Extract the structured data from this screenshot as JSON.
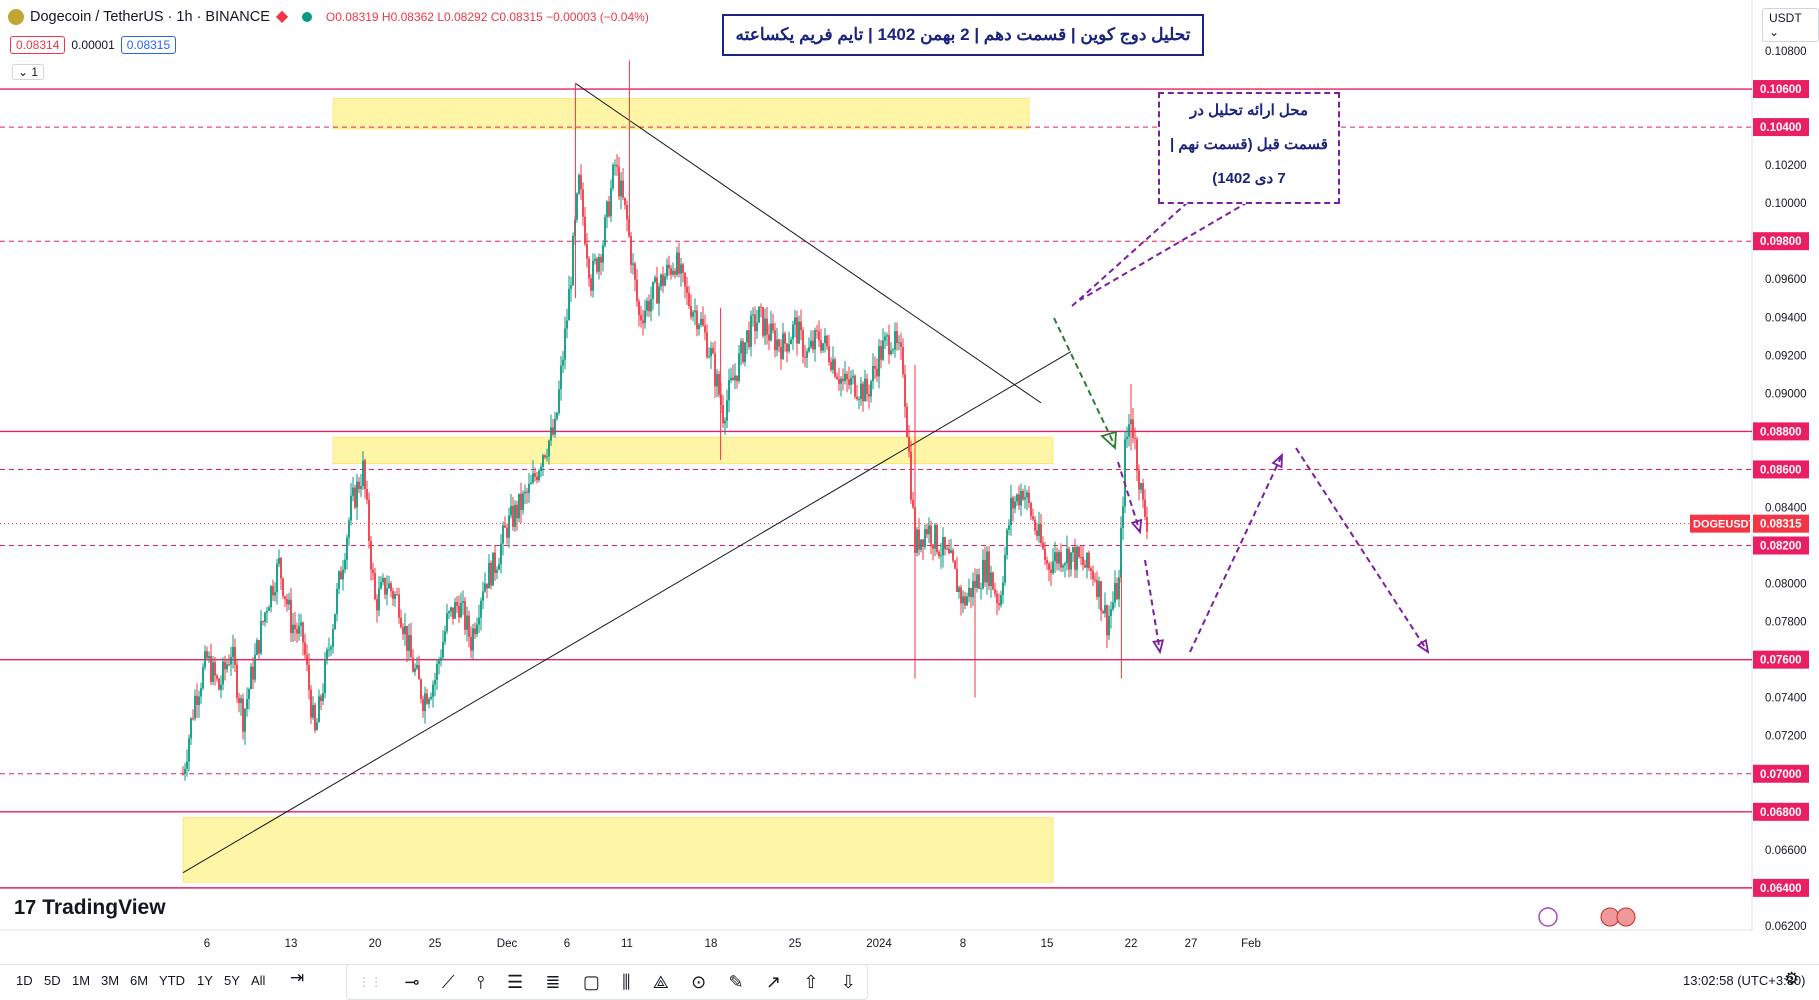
{
  "header": {
    "symbol": "Dogecoin / TetherUS · 1h · BINANCE",
    "ohlc": "O0.08319 H0.08362 L0.08292 C0.08315 −0.00003 (−0.04%)",
    "bid": "0.08314",
    "spread": "0.00001",
    "ask": "0.08315",
    "indicator_index": "1",
    "currency": "USDT"
  },
  "annotations": {
    "title": "تحلیل دوج کوین | قسمت دهم | 2 بهمن 1402 | تایم فریم یکساعته",
    "note_line1": "محل ارائه تحلیل در",
    "note_line2": "قسمت قبل (قسمت نهم |",
    "note_line3": "7 دی 1402)"
  },
  "brand": {
    "name": "TradingView"
  },
  "toolbar": {
    "timeframes": [
      "1D",
      "5D",
      "1M",
      "3M",
      "6M",
      "YTD",
      "1Y",
      "5Y",
      "All"
    ],
    "clock": "13:02:58 (UTC+3:30)"
  },
  "icons": {
    "calendar": "calendar-range-icon",
    "settings": "gear-icon",
    "logo": "tradingview-logo-icon"
  },
  "colors": {
    "up": "#089981",
    "down": "#f23645",
    "level": "#e91e63",
    "zone": "#fff59d",
    "annotation_purple": "#7b1fa2",
    "annotation_green": "#2e7d32",
    "title_blue": "#1a237e"
  },
  "chart_data": {
    "type": "candlestick",
    "symbol": "DOGEUSDT",
    "last_price": 0.08315,
    "ylim": [
      0.062,
      0.108
    ],
    "y_ticks": [
      0.108,
      0.106,
      0.104,
      0.102,
      0.1,
      0.098,
      0.096,
      0.094,
      0.092,
      0.09,
      0.088,
      0.086,
      0.084,
      0.082,
      0.08,
      0.078,
      0.076,
      0.074,
      0.072,
      0.07,
      0.068,
      0.066,
      0.064,
      0.062
    ],
    "y_tick_labels": [
      "0.10800",
      "0.10600",
      "0.10400",
      "0.10200",
      "0.10000",
      "0.09800",
      "0.09600",
      "0.09400",
      "0.09200",
      "0.09000",
      "0.08800",
      "0.08600",
      "0.08400",
      "0.08200",
      "0.08000",
      "0.07800",
      "0.07600",
      "0.07400",
      "0.07200",
      "0.07000",
      "0.06800",
      "0.06600",
      "0.06400",
      "0.06200"
    ],
    "x_tick_labels": [
      "6",
      "13",
      "20",
      "25",
      "Dec",
      "6",
      "11",
      "18",
      "25",
      "2024",
      "8",
      "15",
      "22",
      "27",
      "Feb"
    ],
    "x_tick_days": [
      -25,
      -18,
      -11,
      -6,
      0,
      5,
      10,
      17,
      24,
      31,
      38,
      45,
      52,
      57,
      62
    ],
    "highlighted_levels": [
      {
        "price": 0.106,
        "label": "0.10600",
        "style": "solid"
      },
      {
        "price": 0.104,
        "label": "0.10400",
        "style": "dashed"
      },
      {
        "price": 0.098,
        "label": "0.09800",
        "style": "dashed"
      },
      {
        "price": 0.088,
        "label": "0.08800",
        "style": "solid"
      },
      {
        "price": 0.086,
        "label": "0.08600",
        "style": "dashed"
      },
      {
        "price": 0.082,
        "label": "0.08200",
        "style": "dashed"
      },
      {
        "price": 0.076,
        "label": "0.07600",
        "style": "solid"
      },
      {
        "price": 0.07,
        "label": "0.07000",
        "style": "dashed"
      },
      {
        "price": 0.068,
        "label": "0.06800",
        "style": "solid"
      },
      {
        "price": 0.064,
        "label": "0.06400",
        "style": "solid"
      }
    ],
    "zones": [
      {
        "x_from": -14.5,
        "x_to": 43.5,
        "y_from": 0.1039,
        "y_to": 0.1055
      },
      {
        "x_from": -14.5,
        "x_to": 45.5,
        "y_from": 0.0863,
        "y_to": 0.0877
      },
      {
        "x_from": -27,
        "x_to": 45.5,
        "y_from": 0.0643,
        "y_to": 0.0677
      }
    ],
    "trendlines": [
      {
        "from": [
          -27.0,
          0.0648
        ],
        "to": [
          47.0,
          0.0922
        ]
      },
      {
        "from": [
          5.7,
          0.1063
        ],
        "to": [
          44.5,
          0.0895
        ]
      }
    ],
    "price_label": "DOGEUSDT",
    "price_label_value": "0.08315",
    "candles_close_path": [
      [
        -27.0,
        0.07
      ],
      [
        -26,
        0.074
      ],
      [
        -25,
        0.076
      ],
      [
        -24,
        0.0745
      ],
      [
        -23,
        0.0765
      ],
      [
        -22,
        0.073
      ],
      [
        -21,
        0.076
      ],
      [
        -20,
        0.079
      ],
      [
        -19,
        0.081
      ],
      [
        -18,
        0.078
      ],
      [
        -17,
        0.077
      ],
      [
        -16,
        0.072
      ],
      [
        -15,
        0.076
      ],
      [
        -14,
        0.08
      ],
      [
        -13,
        0.084
      ],
      [
        -12,
        0.086
      ],
      [
        -11,
        0.079
      ],
      [
        -10,
        0.08
      ],
      [
        -9,
        0.079
      ],
      [
        -8,
        0.076
      ],
      [
        -7,
        0.074
      ],
      [
        -6,
        0.075
      ],
      [
        -5,
        0.078
      ],
      [
        -4,
        0.079
      ],
      [
        -3,
        0.077
      ],
      [
        -2,
        0.08
      ],
      [
        -1,
        0.081
      ],
      [
        0,
        0.083
      ],
      [
        1,
        0.084
      ],
      [
        2,
        0.085
      ],
      [
        3,
        0.087
      ],
      [
        4,
        0.088
      ],
      [
        5,
        0.094
      ],
      [
        6,
        0.101
      ],
      [
        7,
        0.096
      ],
      [
        8,
        0.098
      ],
      [
        9,
        0.102
      ],
      [
        10,
        0.099
      ],
      [
        11,
        0.094
      ],
      [
        12,
        0.095
      ],
      [
        13,
        0.096
      ],
      [
        14,
        0.097
      ],
      [
        15,
        0.095
      ],
      [
        16,
        0.094
      ],
      [
        17,
        0.092
      ],
      [
        18,
        0.089
      ],
      [
        19,
        0.091
      ],
      [
        20,
        0.093
      ],
      [
        21,
        0.094
      ],
      [
        22,
        0.093
      ],
      [
        23,
        0.0925
      ],
      [
        24,
        0.0935
      ],
      [
        25,
        0.092
      ],
      [
        26,
        0.093
      ],
      [
        27,
        0.092
      ],
      [
        28,
        0.0905
      ],
      [
        29,
        0.0905
      ],
      [
        30,
        0.09
      ],
      [
        31,
        0.092
      ],
      [
        32,
        0.093
      ],
      [
        33,
        0.0915
      ],
      [
        34,
        0.082
      ],
      [
        35,
        0.083
      ],
      [
        36,
        0.082
      ],
      [
        37,
        0.081
      ],
      [
        38,
        0.079
      ],
      [
        39,
        0.08
      ],
      [
        40,
        0.081
      ],
      [
        41,
        0.079
      ],
      [
        42,
        0.084
      ],
      [
        43,
        0.085
      ],
      [
        44,
        0.083
      ],
      [
        45,
        0.081
      ],
      [
        46,
        0.0815
      ],
      [
        47,
        0.0815
      ],
      [
        48,
        0.081
      ],
      [
        49,
        0.0805
      ],
      [
        50,
        0.078
      ],
      [
        51,
        0.08
      ],
      [
        51.5,
        0.087
      ],
      [
        52,
        0.089
      ],
      [
        53,
        0.084
      ],
      [
        53.5,
        0.083
      ]
    ]
  }
}
